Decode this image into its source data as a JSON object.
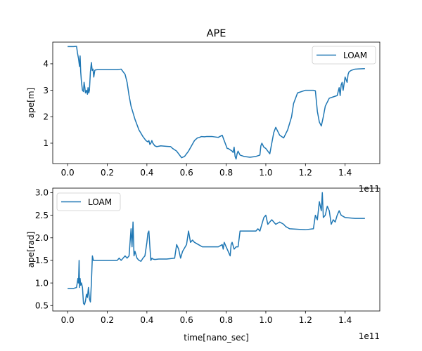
{
  "chart_data": [
    {
      "type": "line",
      "title": "APE",
      "xlabel": "",
      "ylabel": "ape[m]",
      "x_offset_text": "1e11",
      "xlim": [
        -0.075,
        1.575
      ],
      "ylim": [
        0.23,
        4.82
      ],
      "x_unit_multiplier": 100000000000,
      "xticks": [
        0.0,
        0.2,
        0.4,
        0.6,
        0.8,
        1.0,
        1.2,
        1.4
      ],
      "xtick_labels": [
        "0.0",
        "0.2",
        "0.4",
        "0.6",
        "0.8",
        "1.0",
        "1.2",
        "1.4"
      ],
      "yticks": [
        1,
        2,
        3,
        4
      ],
      "ytick_labels": [
        "1",
        "2",
        "3",
        "4"
      ],
      "legend": {
        "placement": "top-right"
      },
      "series_color": "#1f77b4",
      "series": [
        {
          "name": "LOAM",
          "x": [
            0.0,
            0.03,
            0.045,
            0.05,
            0.055,
            0.06,
            0.063,
            0.066,
            0.07,
            0.075,
            0.08,
            0.083,
            0.087,
            0.09,
            0.095,
            0.1,
            0.103,
            0.107,
            0.11,
            0.115,
            0.12,
            0.124,
            0.128,
            0.132,
            0.137,
            0.14,
            0.15,
            0.2,
            0.25,
            0.27,
            0.29,
            0.3,
            0.31,
            0.32,
            0.34,
            0.36,
            0.38,
            0.395,
            0.405,
            0.41,
            0.415,
            0.42,
            0.425,
            0.43,
            0.44,
            0.45,
            0.47,
            0.5,
            0.52,
            0.53,
            0.55,
            0.565,
            0.575,
            0.59,
            0.61,
            0.625,
            0.64,
            0.655,
            0.665,
            0.675,
            0.69,
            0.7,
            0.73,
            0.76,
            0.78,
            0.785,
            0.79,
            0.795,
            0.8,
            0.805,
            0.81,
            0.82,
            0.83,
            0.835,
            0.84,
            0.845,
            0.85,
            0.855,
            0.86,
            0.87,
            0.89,
            0.92,
            0.95,
            0.97,
            0.975,
            0.98,
            0.99,
            1.0,
            1.01,
            1.02,
            1.03,
            1.04,
            1.05,
            1.07,
            1.09,
            1.11,
            1.13,
            1.14,
            1.16,
            1.2,
            1.24,
            1.25,
            1.26,
            1.27,
            1.28,
            1.29,
            1.3,
            1.32,
            1.34,
            1.36,
            1.37,
            1.375,
            1.38,
            1.385,
            1.39,
            1.4,
            1.41,
            1.415,
            1.42,
            1.43,
            1.45,
            1.5
          ],
          "y": [
            4.65,
            4.65,
            4.66,
            4.4,
            4.2,
            3.9,
            4.3,
            3.7,
            3.3,
            3.0,
            2.95,
            3.3,
            3.1,
            2.9,
            3.0,
            2.85,
            3.1,
            2.9,
            3.0,
            3.7,
            4.05,
            3.75,
            3.8,
            3.5,
            3.75,
            3.77,
            3.78,
            3.78,
            3.78,
            3.8,
            3.6,
            3.3,
            2.8,
            2.4,
            1.9,
            1.5,
            1.25,
            1.1,
            1.05,
            1.1,
            0.95,
            1.0,
            1.1,
            1.0,
            0.9,
            0.87,
            0.9,
            0.88,
            0.87,
            0.8,
            0.7,
            0.55,
            0.45,
            0.5,
            0.7,
            0.9,
            1.1,
            1.2,
            1.22,
            1.25,
            1.24,
            1.25,
            1.25,
            1.22,
            1.3,
            1.2,
            1.1,
            1.0,
            0.9,
            0.8,
            0.8,
            0.75,
            0.7,
            0.65,
            0.85,
            0.5,
            0.4,
            0.6,
            0.7,
            0.55,
            0.5,
            0.47,
            0.5,
            0.55,
            0.9,
            1.0,
            0.85,
            0.8,
            0.7,
            0.6,
            1.0,
            1.4,
            1.6,
            1.3,
            1.2,
            1.5,
            2.0,
            2.5,
            2.9,
            3.0,
            3.0,
            2.98,
            2.2,
            1.8,
            1.65,
            2.0,
            2.4,
            2.7,
            2.75,
            2.8,
            3.1,
            2.8,
            3.2,
            3.3,
            3.0,
            3.5,
            3.3,
            3.6,
            3.7,
            3.75,
            3.8,
            3.82
          ]
        }
      ]
    },
    {
      "type": "line",
      "title": "",
      "xlabel": "time[nano_sec]",
      "ylabel": "ape[rad]",
      "x_offset_text": "1e11",
      "xlim": [
        -0.075,
        1.575
      ],
      "ylim": [
        0.38,
        3.1
      ],
      "x_unit_multiplier": 100000000000,
      "xticks": [
        0.0,
        0.2,
        0.4,
        0.6,
        0.8,
        1.0,
        1.2,
        1.4
      ],
      "xtick_labels": [
        "0.0",
        "0.2",
        "0.4",
        "0.6",
        "0.8",
        "1.0",
        "1.2",
        "1.4"
      ],
      "yticks": [
        0.5,
        1.0,
        1.5,
        2.0,
        2.5,
        3.0
      ],
      "ytick_labels": [
        "0.5",
        "1.0",
        "1.5",
        "2.0",
        "2.5",
        "3.0"
      ],
      "legend": {
        "placement": "top-left"
      },
      "series_color": "#1f77b4",
      "series": [
        {
          "name": "LOAM",
          "x": [
            0.0,
            0.03,
            0.045,
            0.052,
            0.055,
            0.058,
            0.06,
            0.063,
            0.066,
            0.07,
            0.075,
            0.08,
            0.085,
            0.09,
            0.095,
            0.1,
            0.105,
            0.11,
            0.115,
            0.12,
            0.125,
            0.13,
            0.15,
            0.2,
            0.25,
            0.26,
            0.27,
            0.29,
            0.3,
            0.31,
            0.32,
            0.325,
            0.33,
            0.335,
            0.34,
            0.35,
            0.36,
            0.37,
            0.38,
            0.39,
            0.4,
            0.405,
            0.41,
            0.415,
            0.42,
            0.425,
            0.43,
            0.44,
            0.46,
            0.5,
            0.54,
            0.55,
            0.56,
            0.57,
            0.58,
            0.6,
            0.61,
            0.62,
            0.63,
            0.64,
            0.66,
            0.68,
            0.7,
            0.72,
            0.76,
            0.78,
            0.785,
            0.79,
            0.8,
            0.81,
            0.82,
            0.825,
            0.83,
            0.84,
            0.85,
            0.86,
            0.87,
            0.9,
            0.95,
            0.96,
            0.97,
            0.98,
            0.99,
            1.0,
            1.01,
            1.03,
            1.05,
            1.07,
            1.09,
            1.1,
            1.12,
            1.2,
            1.24,
            1.25,
            1.26,
            1.27,
            1.28,
            1.285,
            1.29,
            1.3,
            1.31,
            1.32,
            1.33,
            1.34,
            1.35,
            1.36,
            1.37,
            1.38,
            1.4,
            1.45,
            1.5
          ],
          "y": [
            0.88,
            0.88,
            0.9,
            1.1,
            1.0,
            1.5,
            0.9,
            1.1,
            0.95,
            1.0,
            0.9,
            0.55,
            0.52,
            0.6,
            0.75,
            0.68,
            0.9,
            0.65,
            0.58,
            1.0,
            1.6,
            1.5,
            1.5,
            1.5,
            1.5,
            1.55,
            1.5,
            1.6,
            1.55,
            1.6,
            2.2,
            1.8,
            2.35,
            1.6,
            1.7,
            1.55,
            1.5,
            1.48,
            1.55,
            1.6,
            1.9,
            2.1,
            2.15,
            1.8,
            1.5,
            1.55,
            1.53,
            1.52,
            1.53,
            1.53,
            1.55,
            1.85,
            1.75,
            1.55,
            1.7,
            1.85,
            2.15,
            1.9,
            1.95,
            1.9,
            1.85,
            1.8,
            1.8,
            1.8,
            1.8,
            1.85,
            1.75,
            1.9,
            1.8,
            1.7,
            1.6,
            1.85,
            1.9,
            1.75,
            1.8,
            1.8,
            2.15,
            2.15,
            2.15,
            2.2,
            2.15,
            2.3,
            2.45,
            2.5,
            2.3,
            2.4,
            2.3,
            2.35,
            2.3,
            2.25,
            2.2,
            2.18,
            2.2,
            2.5,
            2.4,
            2.8,
            2.6,
            3.0,
            2.45,
            2.5,
            2.7,
            2.6,
            2.3,
            2.4,
            2.35,
            2.5,
            2.6,
            2.5,
            2.45,
            2.43,
            2.43
          ]
        }
      ]
    }
  ]
}
